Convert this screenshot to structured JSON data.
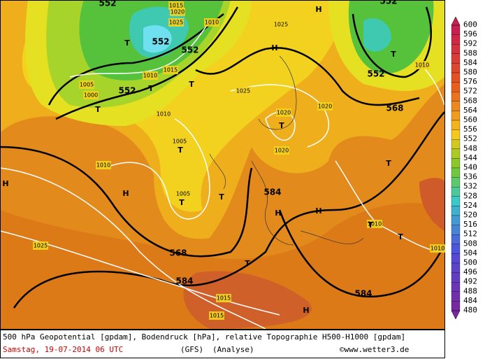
{
  "map": {
    "heights": [
      "552",
      "552",
      "552",
      "552",
      "552",
      "552",
      "568",
      "584",
      "568",
      "584",
      "584"
    ],
    "pressure": [
      "1015",
      "1020",
      "1025",
      "1010",
      "1025",
      "1010",
      "1005",
      "1000",
      "1015",
      "1010",
      "1025",
      "1010",
      "1020",
      "1020",
      "1020",
      "1005",
      "1010",
      "1005",
      "1010",
      "1010",
      "1025",
      "1015",
      "1015"
    ],
    "centers": [
      "T",
      "T",
      "T",
      "T",
      "H",
      "H",
      "T",
      "T",
      "T",
      "T",
      "T",
      "H",
      "H",
      "H",
      "H",
      "T",
      "T",
      "T",
      "T",
      "H"
    ]
  },
  "colorbar": {
    "labels": [
      "600",
      "596",
      "592",
      "588",
      "584",
      "580",
      "576",
      "572",
      "568",
      "564",
      "560",
      "556",
      "552",
      "548",
      "544",
      "540",
      "536",
      "532",
      "528",
      "524",
      "520",
      "516",
      "512",
      "508",
      "504",
      "500",
      "496",
      "492",
      "488",
      "484",
      "480"
    ]
  },
  "caption": {
    "title": "500 hPa Geopotential [gpdam], Bodendruck [hPa], relative Topographie H500-H1000 [gpdam]",
    "date": "Samstag, 19-07-2014  06 UTC",
    "model": "(GFS)",
    "run": "(Analyse)",
    "source": "©www.wetter3.de"
  }
}
